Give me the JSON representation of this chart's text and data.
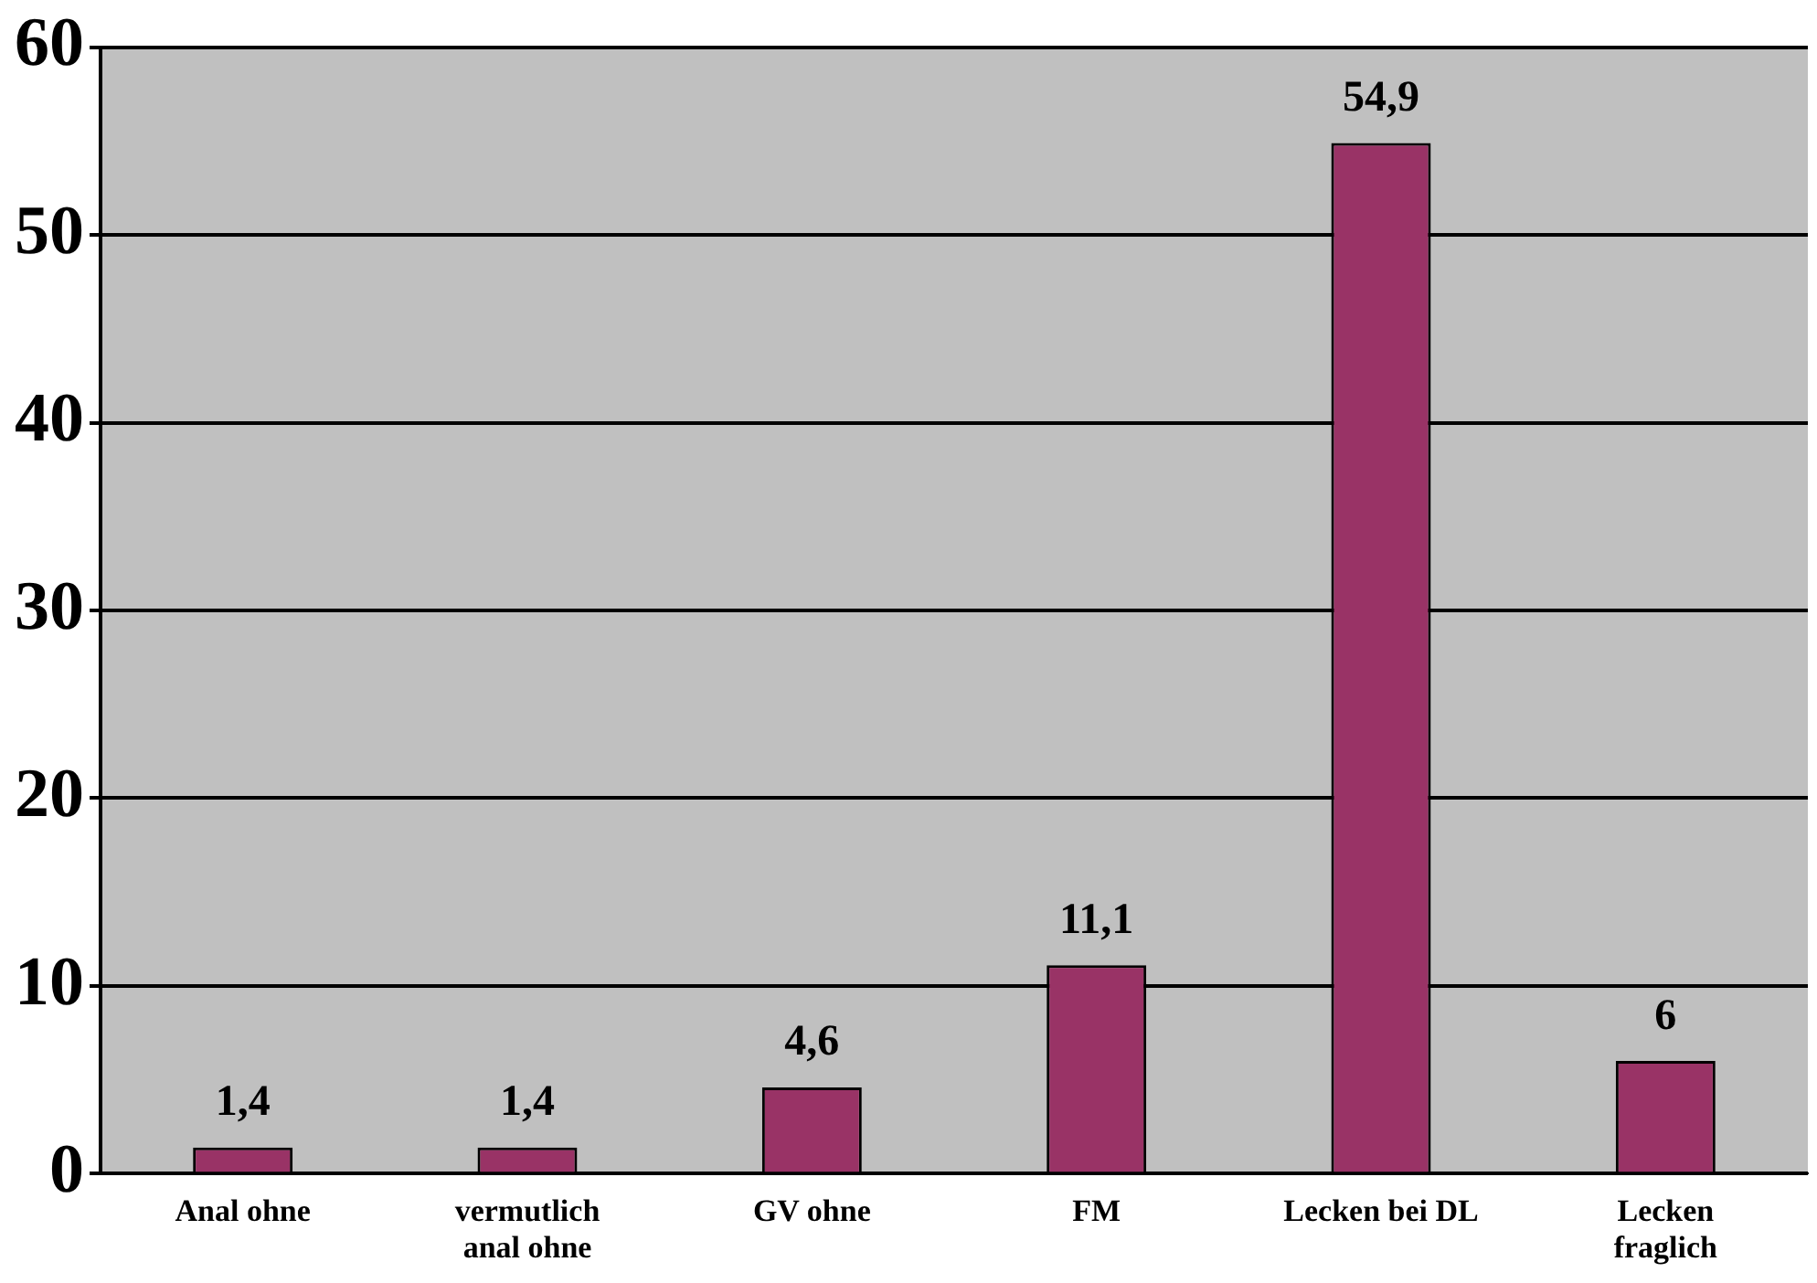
{
  "chart_data": {
    "type": "bar",
    "categories": [
      "Anal ohne",
      "vermutlich\nanal ohne",
      "GV ohne",
      "FM",
      "Lecken bei DL",
      "Lecken\nfraglich"
    ],
    "values": [
      1.4,
      1.4,
      4.6,
      11.1,
      54.9,
      6
    ],
    "value_labels": [
      "1,4",
      "1,4",
      "4,6",
      "11,1",
      "54,9",
      "6"
    ],
    "color": "#993366",
    "ylim": [
      0,
      60
    ],
    "yticks": [
      0,
      10,
      20,
      30,
      40,
      50,
      60
    ],
    "grid": "y",
    "legend": false
  }
}
